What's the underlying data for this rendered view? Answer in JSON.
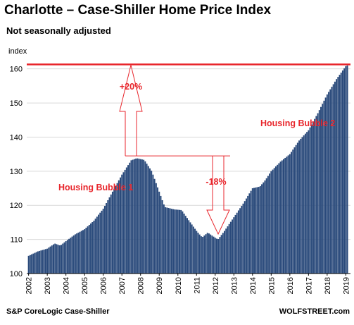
{
  "chart_data": {
    "type": "bar",
    "title": "Charlotte – Case-Shiller Home Price Index",
    "subtitle": "Not seasonally adjusted",
    "ylabel": "index",
    "ylim": [
      100,
      162
    ],
    "yticks": [
      100,
      110,
      120,
      130,
      140,
      150,
      160
    ],
    "xlim": [
      2001.9,
      2019.25
    ],
    "xticks": [
      "2002",
      "2003",
      "2004",
      "2005",
      "2006",
      "2007",
      "2008",
      "2009",
      "2010",
      "2011",
      "2012",
      "2013",
      "2014",
      "2015",
      "2016",
      "2017",
      "2018",
      "2019"
    ],
    "series_color": "#2a4a7b",
    "grid": "horizontal",
    "anchors": [
      [
        2002.0,
        105.2
      ],
      [
        2002.5,
        106.5
      ],
      [
        2003.0,
        107.3
      ],
      [
        2003.4,
        108.8
      ],
      [
        2003.7,
        108.2
      ],
      [
        2004.0,
        109.5
      ],
      [
        2004.5,
        111.5
      ],
      [
        2005.0,
        113.0
      ],
      [
        2005.5,
        115.5
      ],
      [
        2006.0,
        119.0
      ],
      [
        2006.5,
        124.0
      ],
      [
        2007.0,
        129.0
      ],
      [
        2007.5,
        133.2
      ],
      [
        2007.8,
        133.8
      ],
      [
        2008.2,
        133.3
      ],
      [
        2008.6,
        130.0
      ],
      [
        2009.0,
        124.0
      ],
      [
        2009.3,
        119.5
      ],
      [
        2009.8,
        118.8
      ],
      [
        2010.2,
        118.6
      ],
      [
        2010.6,
        115.5
      ],
      [
        2011.0,
        112.5
      ],
      [
        2011.3,
        110.6
      ],
      [
        2011.6,
        112.0
      ],
      [
        2012.0,
        110.5
      ],
      [
        2012.15,
        110.0
      ],
      [
        2012.5,
        112.5
      ],
      [
        2013.0,
        116.5
      ],
      [
        2013.5,
        120.5
      ],
      [
        2014.0,
        125.0
      ],
      [
        2014.4,
        125.5
      ],
      [
        2014.7,
        127.5
      ],
      [
        2015.0,
        130.0
      ],
      [
        2015.5,
        132.8
      ],
      [
        2016.0,
        135.0
      ],
      [
        2016.5,
        139.0
      ],
      [
        2017.0,
        142.0
      ],
      [
        2017.5,
        147.0
      ],
      [
        2018.0,
        152.5
      ],
      [
        2018.5,
        157.0
      ],
      [
        2019.0,
        160.8
      ],
      [
        2019.2,
        161.3
      ]
    ],
    "peak_line_value": 161.3,
    "bubble1_peak_value": 134.5,
    "annotations": {
      "bubble1": "Housing Bubble 1",
      "bubble2": "Housing Bubble 2",
      "rise": "+20%",
      "fall": "-18%"
    },
    "source": "S&P CoreLogic Case-Shiller",
    "brand": "WOLFSTREET.com"
  }
}
